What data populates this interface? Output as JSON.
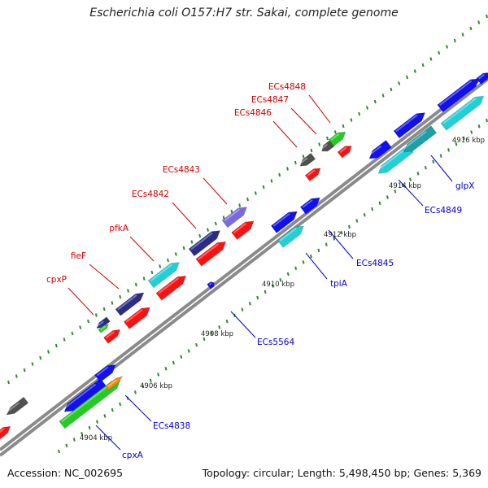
{
  "title": "Escherichia coli O157:H7 str. Sakai, complete genome",
  "footer": {
    "accession": "Accession: NC_002695",
    "summary": "Topology: circular; Length: 5,498,450 bp; Genes: 5,369"
  },
  "colors": {
    "backbone": "#8a8a8a",
    "tick": "#2e8b2e",
    "label_top": "#cc0000",
    "label_bottom": "#0000cc",
    "red": "#ff1010",
    "blue": "#1010f0",
    "navy": "#2b2b8c",
    "cyan": "#20d0d8",
    "teal": "#1aa0a8",
    "gray": "#505050",
    "green": "#22cc22",
    "orange": "#f08c10",
    "lavender": "#7a6ae0"
  },
  "kbp_labels": [
    "4904 kbp",
    "4906 kbp",
    "4908 kbp",
    "4910 kbp",
    "4912 kbp",
    "4914 kbp",
    "4916 kbp"
  ],
  "top_labels": [
    "cpxP",
    "fieF",
    "pfkA",
    "ECs4842",
    "ECs4843",
    "ECs4846",
    "ECs4847",
    "ECs4848"
  ],
  "bottom_labels": [
    "cpxA",
    "ECs4838",
    "ECs5564",
    "tpiA",
    "ECs4845",
    "ECs4849",
    "glpX"
  ]
}
